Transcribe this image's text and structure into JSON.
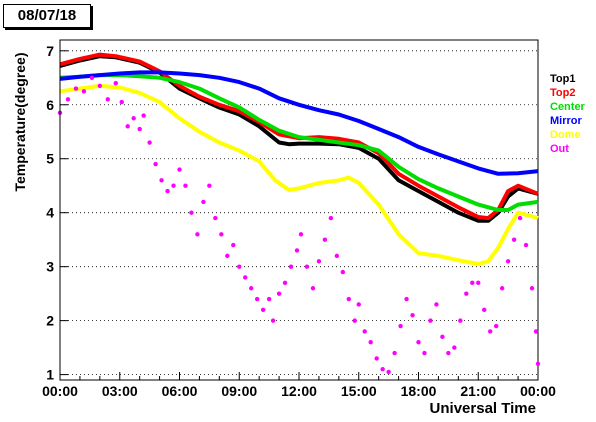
{
  "date_label": "08/07/18",
  "chart_data": {
    "type": "line",
    "title": "",
    "xlabel": "Universal Time",
    "ylabel": "Temperature(degree)",
    "xlim": [
      0,
      24
    ],
    "ylim": [
      0.9,
      7.2
    ],
    "x_ticks": [
      0,
      3,
      6,
      9,
      12,
      15,
      18,
      21,
      24
    ],
    "x_tick_labels": [
      "00:00",
      "03:00",
      "06:00",
      "09:00",
      "12:00",
      "15:00",
      "18:00",
      "21:00",
      "00:00"
    ],
    "y_ticks": [
      1,
      2,
      3,
      4,
      5,
      6,
      7
    ],
    "y_tick_labels": [
      "1",
      "2",
      "3",
      "4",
      "5",
      "6",
      "7"
    ],
    "grid": "horizontal dotted",
    "legend_position": "right",
    "series": [
      {
        "name": "Top1",
        "color": "#000000",
        "points": [
          [
            0,
            6.72
          ],
          [
            1,
            6.82
          ],
          [
            2,
            6.9
          ],
          [
            2.8,
            6.88
          ],
          [
            4,
            6.78
          ],
          [
            5,
            6.6
          ],
          [
            6,
            6.3
          ],
          [
            7,
            6.12
          ],
          [
            8,
            5.95
          ],
          [
            9,
            5.82
          ],
          [
            10,
            5.6
          ],
          [
            11,
            5.3
          ],
          [
            11.5,
            5.27
          ],
          [
            12,
            5.28
          ],
          [
            13,
            5.28
          ],
          [
            14,
            5.27
          ],
          [
            15,
            5.2
          ],
          [
            16,
            5.0
          ],
          [
            17,
            4.6
          ],
          [
            18,
            4.4
          ],
          [
            19,
            4.2
          ],
          [
            20,
            4.0
          ],
          [
            21,
            3.85
          ],
          [
            21.5,
            3.85
          ],
          [
            22,
            4.0
          ],
          [
            22.5,
            4.3
          ],
          [
            23,
            4.45
          ],
          [
            24,
            4.35
          ]
        ]
      },
      {
        "name": "Top2",
        "color": "#ff0000",
        "points": [
          [
            0,
            6.75
          ],
          [
            1,
            6.85
          ],
          [
            2,
            6.93
          ],
          [
            2.8,
            6.9
          ],
          [
            4,
            6.8
          ],
          [
            5,
            6.62
          ],
          [
            6,
            6.35
          ],
          [
            7,
            6.15
          ],
          [
            8,
            6.0
          ],
          [
            9,
            5.88
          ],
          [
            10,
            5.68
          ],
          [
            11,
            5.45
          ],
          [
            12,
            5.38
          ],
          [
            13,
            5.4
          ],
          [
            14,
            5.37
          ],
          [
            15,
            5.3
          ],
          [
            16,
            5.1
          ],
          [
            17,
            4.72
          ],
          [
            18,
            4.5
          ],
          [
            19,
            4.3
          ],
          [
            20,
            4.1
          ],
          [
            21,
            3.92
          ],
          [
            21.5,
            3.9
          ],
          [
            22,
            4.05
          ],
          [
            22.5,
            4.4
          ],
          [
            23,
            4.5
          ],
          [
            24,
            4.35
          ]
        ]
      },
      {
        "name": "Center",
        "color": "#00dd00",
        "points": [
          [
            0,
            6.5
          ],
          [
            1,
            6.52
          ],
          [
            2,
            6.55
          ],
          [
            3,
            6.55
          ],
          [
            4,
            6.53
          ],
          [
            5,
            6.5
          ],
          [
            6,
            6.42
          ],
          [
            7,
            6.3
          ],
          [
            8,
            6.12
          ],
          [
            9,
            5.95
          ],
          [
            10,
            5.72
          ],
          [
            11,
            5.52
          ],
          [
            12,
            5.4
          ],
          [
            13,
            5.35
          ],
          [
            14,
            5.3
          ],
          [
            15,
            5.25
          ],
          [
            16,
            5.15
          ],
          [
            17,
            4.85
          ],
          [
            18,
            4.62
          ],
          [
            19,
            4.45
          ],
          [
            20,
            4.3
          ],
          [
            21,
            4.15
          ],
          [
            22,
            4.05
          ],
          [
            22.5,
            4.05
          ],
          [
            23,
            4.15
          ],
          [
            24,
            4.2
          ]
        ]
      },
      {
        "name": "Mirror",
        "color": "#0000ff",
        "points": [
          [
            0,
            6.48
          ],
          [
            1,
            6.52
          ],
          [
            2,
            6.55
          ],
          [
            3,
            6.58
          ],
          [
            4,
            6.6
          ],
          [
            5,
            6.6
          ],
          [
            6,
            6.58
          ],
          [
            7,
            6.55
          ],
          [
            8,
            6.5
          ],
          [
            9,
            6.42
          ],
          [
            10,
            6.3
          ],
          [
            11,
            6.12
          ],
          [
            12,
            6.0
          ],
          [
            13,
            5.9
          ],
          [
            14,
            5.82
          ],
          [
            15,
            5.7
          ],
          [
            16,
            5.55
          ],
          [
            17,
            5.4
          ],
          [
            18,
            5.22
          ],
          [
            19,
            5.08
          ],
          [
            20,
            4.95
          ],
          [
            21,
            4.82
          ],
          [
            22,
            4.72
          ],
          [
            23,
            4.73
          ],
          [
            24,
            4.77
          ]
        ]
      },
      {
        "name": "Dome",
        "color": "#ffff00",
        "points": [
          [
            0,
            6.25
          ],
          [
            1,
            6.3
          ],
          [
            2,
            6.35
          ],
          [
            3,
            6.32
          ],
          [
            4,
            6.22
          ],
          [
            5,
            6.05
          ],
          [
            6,
            5.75
          ],
          [
            7,
            5.5
          ],
          [
            8,
            5.3
          ],
          [
            9,
            5.15
          ],
          [
            10,
            4.95
          ],
          [
            10.8,
            4.6
          ],
          [
            11.5,
            4.42
          ],
          [
            12,
            4.45
          ],
          [
            13,
            4.55
          ],
          [
            14,
            4.6
          ],
          [
            14.5,
            4.65
          ],
          [
            15,
            4.55
          ],
          [
            16,
            4.15
          ],
          [
            17,
            3.6
          ],
          [
            18,
            3.25
          ],
          [
            19,
            3.2
          ],
          [
            20,
            3.12
          ],
          [
            21,
            3.05
          ],
          [
            21.5,
            3.1
          ],
          [
            22,
            3.35
          ],
          [
            22.5,
            3.7
          ],
          [
            23,
            4.0
          ],
          [
            24,
            3.9
          ]
        ]
      },
      {
        "name": "Out",
        "color": "#ff00ff",
        "style": "scatter",
        "points": [
          [
            0,
            5.85
          ],
          [
            0.4,
            6.1
          ],
          [
            0.8,
            6.3
          ],
          [
            1.2,
            6.25
          ],
          [
            1.6,
            6.5
          ],
          [
            2.0,
            6.35
          ],
          [
            2.4,
            6.1
          ],
          [
            2.8,
            6.4
          ],
          [
            3.1,
            6.05
          ],
          [
            3.4,
            5.6
          ],
          [
            3.7,
            5.75
          ],
          [
            4.0,
            5.55
          ],
          [
            4.2,
            5.8
          ],
          [
            4.5,
            5.3
          ],
          [
            4.8,
            4.9
          ],
          [
            5.1,
            4.6
          ],
          [
            5.4,
            4.4
          ],
          [
            5.7,
            4.5
          ],
          [
            6.0,
            4.8
          ],
          [
            6.3,
            4.5
          ],
          [
            6.6,
            4.0
          ],
          [
            6.9,
            3.6
          ],
          [
            7.2,
            4.2
          ],
          [
            7.5,
            4.5
          ],
          [
            7.8,
            3.9
          ],
          [
            8.1,
            3.6
          ],
          [
            8.4,
            3.2
          ],
          [
            8.7,
            3.4
          ],
          [
            9.0,
            3.0
          ],
          [
            9.3,
            2.8
          ],
          [
            9.6,
            2.6
          ],
          [
            9.9,
            2.4
          ],
          [
            10.2,
            2.2
          ],
          [
            10.5,
            2.4
          ],
          [
            10.7,
            2.0
          ],
          [
            11.0,
            2.5
          ],
          [
            11.3,
            2.7
          ],
          [
            11.6,
            3.0
          ],
          [
            11.9,
            3.3
          ],
          [
            12.1,
            3.6
          ],
          [
            12.4,
            3.0
          ],
          [
            12.7,
            2.6
          ],
          [
            13.0,
            3.1
          ],
          [
            13.3,
            3.5
          ],
          [
            13.6,
            3.9
          ],
          [
            13.9,
            3.2
          ],
          [
            14.2,
            2.9
          ],
          [
            14.5,
            2.4
          ],
          [
            14.8,
            2.0
          ],
          [
            15.0,
            2.3
          ],
          [
            15.3,
            1.8
          ],
          [
            15.6,
            1.6
          ],
          [
            15.9,
            1.3
          ],
          [
            16.2,
            1.1
          ],
          [
            16.5,
            1.05
          ],
          [
            16.8,
            1.4
          ],
          [
            17.1,
            1.9
          ],
          [
            17.4,
            2.4
          ],
          [
            17.7,
            2.1
          ],
          [
            18.0,
            1.6
          ],
          [
            18.3,
            1.4
          ],
          [
            18.6,
            2.0
          ],
          [
            18.9,
            2.3
          ],
          [
            19.2,
            1.7
          ],
          [
            19.5,
            1.4
          ],
          [
            19.8,
            1.5
          ],
          [
            20.1,
            2.0
          ],
          [
            20.4,
            2.5
          ],
          [
            20.7,
            2.7
          ],
          [
            21.0,
            2.7
          ],
          [
            21.3,
            2.2
          ],
          [
            21.6,
            1.8
          ],
          [
            21.9,
            1.9
          ],
          [
            22.2,
            2.6
          ],
          [
            22.5,
            3.1
          ],
          [
            22.8,
            3.5
          ],
          [
            23.1,
            3.9
          ],
          [
            23.4,
            3.4
          ],
          [
            23.7,
            2.6
          ],
          [
            23.9,
            1.8
          ],
          [
            24,
            1.2
          ]
        ]
      }
    ]
  }
}
